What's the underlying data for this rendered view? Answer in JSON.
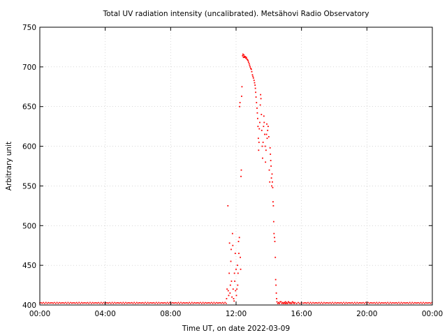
{
  "chart_data": {
    "type": "scatter",
    "title": "Total UV radiation intensity (uncalibrated). Metsähovi Radio Observatory",
    "xlabel": "Time UT, on date 2022-03-09",
    "ylabel": "Arbitrary unit",
    "x_unit": "hours",
    "xlim": [
      0,
      24
    ],
    "ylim": [
      400,
      750
    ],
    "x_ticks": [
      {
        "value": 0,
        "label": "00:00"
      },
      {
        "value": 4,
        "label": "04:00"
      },
      {
        "value": 8,
        "label": "08:00"
      },
      {
        "value": 12,
        "label": "12:00"
      },
      {
        "value": 16,
        "label": "16:00"
      },
      {
        "value": 20,
        "label": "20:00"
      },
      {
        "value": 24,
        "label": "00:00"
      }
    ],
    "y_ticks": [
      400,
      450,
      500,
      550,
      600,
      650,
      700,
      750
    ],
    "grid": true,
    "legend": "none",
    "marker_color": "#ff0000",
    "baseline": {
      "value": 402,
      "x_ranges": [
        [
          0,
          11.45
        ],
        [
          16.1,
          24
        ]
      ]
    },
    "series": [
      {
        "points": [
          [
            11.42,
            408
          ],
          [
            11.45,
            420
          ],
          [
            11.5,
            525
          ],
          [
            11.52,
            418
          ],
          [
            11.55,
            412
          ],
          [
            11.58,
            440
          ],
          [
            11.6,
            478
          ],
          [
            11.63,
            415
          ],
          [
            11.65,
            425
          ],
          [
            11.68,
            455
          ],
          [
            11.7,
            470
          ],
          [
            11.72,
            430
          ],
          [
            11.75,
            410
          ],
          [
            11.78,
            490
          ],
          [
            11.8,
            475
          ],
          [
            11.82,
            420
          ],
          [
            11.85,
            408
          ],
          [
            11.88,
            405
          ],
          [
            11.9,
            440
          ],
          [
            11.92,
            430
          ],
          [
            11.95,
            465
          ],
          [
            11.97,
            418
          ],
          [
            12.0,
            445
          ],
          [
            12.02,
            412
          ],
          [
            12.05,
            420
          ],
          [
            12.08,
            450
          ],
          [
            12.1,
            425
          ],
          [
            12.12,
            440
          ],
          [
            12.15,
            480
          ],
          [
            12.17,
            465
          ],
          [
            12.2,
            485
          ],
          [
            12.22,
            650
          ],
          [
            12.24,
            655
          ],
          [
            12.26,
            460
          ],
          [
            12.28,
            445
          ],
          [
            12.3,
            562
          ],
          [
            12.32,
            570
          ],
          [
            12.34,
            663
          ],
          [
            12.36,
            675
          ],
          [
            12.4,
            714
          ],
          [
            12.42,
            716
          ],
          [
            12.45,
            712
          ],
          [
            12.48,
            715
          ],
          [
            12.5,
            713
          ],
          [
            12.53,
            712
          ],
          [
            12.56,
            713
          ],
          [
            12.6,
            711
          ],
          [
            12.63,
            712
          ],
          [
            12.66,
            710
          ],
          [
            12.7,
            709
          ],
          [
            12.73,
            708
          ],
          [
            12.76,
            706
          ],
          [
            12.8,
            704
          ],
          [
            12.83,
            702
          ],
          [
            12.86,
            700
          ],
          [
            12.9,
            698
          ],
          [
            12.93,
            697
          ],
          [
            12.96,
            694
          ],
          [
            13.0,
            690
          ],
          [
            13.03,
            688
          ],
          [
            13.06,
            686
          ],
          [
            13.1,
            683
          ],
          [
            13.13,
            680
          ],
          [
            13.16,
            677
          ],
          [
            13.18,
            673
          ],
          [
            13.2,
            668
          ],
          [
            13.22,
            662
          ],
          [
            13.25,
            655
          ],
          [
            13.28,
            648
          ],
          [
            13.3,
            642
          ],
          [
            13.32,
            635
          ],
          [
            13.34,
            625
          ],
          [
            13.36,
            610
          ],
          [
            13.38,
            595
          ],
          [
            13.4,
            605
          ],
          [
            13.42,
            622
          ],
          [
            13.45,
            630
          ],
          [
            13.48,
            652
          ],
          [
            13.5,
            665
          ],
          [
            13.52,
            660
          ],
          [
            13.55,
            640
          ],
          [
            13.57,
            620
          ],
          [
            13.6,
            600
          ],
          [
            13.62,
            585
          ],
          [
            13.65,
            605
          ],
          [
            13.68,
            625
          ],
          [
            13.7,
            638
          ],
          [
            13.72,
            630
          ],
          [
            13.75,
            615
          ],
          [
            13.78,
            600
          ],
          [
            13.8,
            580
          ],
          [
            13.83,
            595
          ],
          [
            13.86,
            615
          ],
          [
            13.88,
            628
          ],
          [
            13.9,
            610
          ],
          [
            13.93,
            620
          ],
          [
            13.96,
            625
          ],
          [
            14.0,
            612
          ],
          [
            14.03,
            570
          ],
          [
            14.06,
            555
          ],
          [
            14.08,
            598
          ],
          [
            14.1,
            590
          ],
          [
            14.12,
            582
          ],
          [
            14.14,
            575
          ],
          [
            14.16,
            560
          ],
          [
            14.18,
            550
          ],
          [
            14.2,
            565
          ],
          [
            14.22,
            555
          ],
          [
            14.24,
            548
          ],
          [
            14.26,
            530
          ],
          [
            14.28,
            525
          ],
          [
            14.3,
            505
          ],
          [
            14.32,
            490
          ],
          [
            14.35,
            485
          ],
          [
            14.37,
            480
          ],
          [
            14.4,
            460
          ],
          [
            14.42,
            432
          ],
          [
            14.44,
            425
          ],
          [
            14.46,
            415
          ],
          [
            14.48,
            408
          ],
          [
            14.5,
            404
          ],
          [
            14.55,
            402
          ],
          [
            14.6,
            403
          ],
          [
            14.65,
            402
          ],
          [
            14.7,
            404
          ],
          [
            14.75,
            404
          ],
          [
            14.8,
            402
          ],
          [
            14.85,
            403
          ],
          [
            14.9,
            402
          ],
          [
            14.95,
            403
          ],
          [
            15.0,
            402
          ],
          [
            15.02,
            404
          ],
          [
            15.06,
            402
          ],
          [
            15.1,
            403
          ],
          [
            15.15,
            402
          ],
          [
            15.2,
            404
          ],
          [
            15.25,
            403
          ],
          [
            15.3,
            402
          ],
          [
            15.35,
            403
          ],
          [
            15.4,
            402
          ],
          [
            15.45,
            404
          ],
          [
            15.5,
            403
          ],
          [
            15.55,
            402
          ],
          [
            15.6,
            403
          ],
          [
            15.7,
            402
          ],
          [
            15.8,
            403
          ],
          [
            15.9,
            402
          ],
          [
            16.0,
            403
          ]
        ]
      }
    ]
  }
}
